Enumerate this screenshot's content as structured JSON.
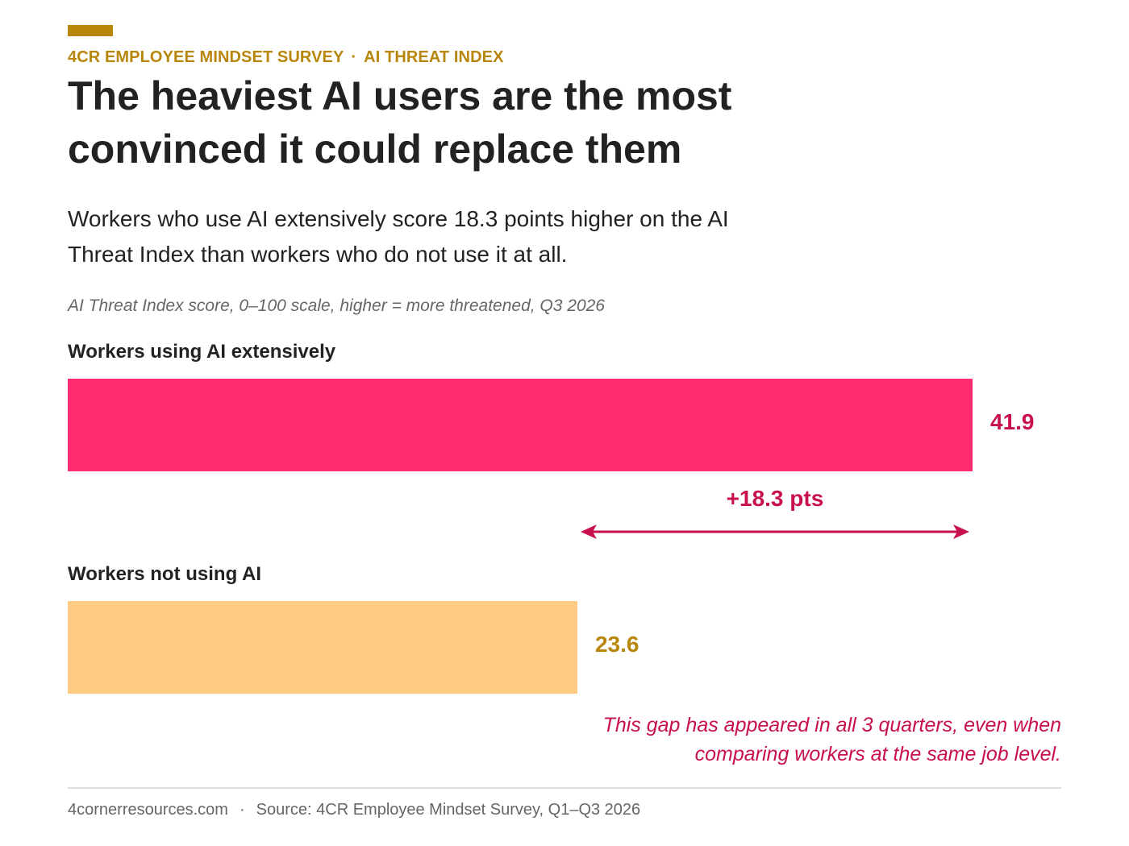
{
  "header": {
    "kicker_left": "4CR EMPLOYEE MINDSET SURVEY",
    "kicker_separator": "·",
    "kicker_right": "AI THREAT INDEX",
    "title": "The heaviest AI users are the most convinced it could replace them",
    "subtitle": "Workers who use AI extensively score 18.3 points higher on the AI Threat Index than workers who do not use it at all.",
    "scale_note": "AI Threat Index score, 0–100 scale, higher = more threatened, Q3 2026"
  },
  "colors": {
    "accent": "#b8860b",
    "extensive_bar": "#ff2d6f",
    "extensive_text": "#c8104f",
    "none_bar": "#ffcb82",
    "none_text": "#b8860b",
    "difference": "#c8104f"
  },
  "chart_data": {
    "type": "bar",
    "orientation": "horizontal",
    "categories": [
      "Workers using AI extensively",
      "Workers not using AI"
    ],
    "values": [
      41.9,
      23.6
    ],
    "value_labels": [
      "41.9",
      "23.6"
    ],
    "difference_label": "+18.3 pts",
    "difference_value": 18.3,
    "xlim": [
      0,
      100
    ]
  },
  "annotation": "This gap has appeared in all 3 quarters, even when comparing workers at the same job level.",
  "footer": {
    "site": "4cornerresources.com",
    "separator": "·",
    "source": "Source: 4CR Employee Mindset Survey, Q1–Q3 2026"
  }
}
